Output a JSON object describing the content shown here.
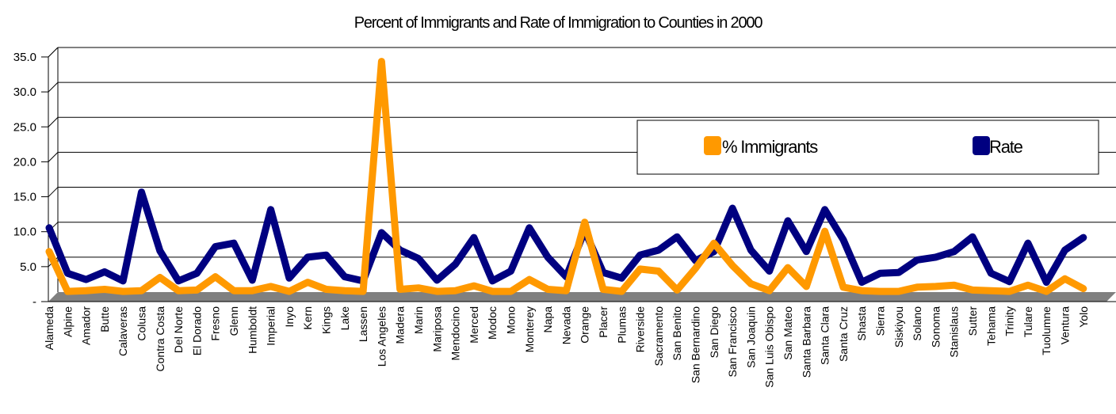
{
  "chart_data": {
    "type": "line",
    "title": "Percent of Immigrants and Rate of Immigration to Counties in 2000",
    "xlabel": "",
    "ylabel": "",
    "ylim": [
      0,
      35
    ],
    "y_ticks": [
      "-",
      "5.0",
      "10.0",
      "15.0",
      "20.0",
      "25.0",
      "30.0",
      "35.0"
    ],
    "grid": true,
    "legend_position": "upper-right",
    "categories": [
      "Alameda",
      "Alpine",
      "Amador",
      "Butte",
      "Calaveras",
      "Colusa",
      "Contra Costa",
      "Del Norte",
      "El Dorado",
      "Fresno",
      "Glenn",
      "Humboldt",
      "Imperial",
      "Inyo",
      "Kern",
      "Kings",
      "Lake",
      "Lassen",
      "Los Angeles",
      "Madera",
      "Marin",
      "Mariposa",
      "Mendocino",
      "Merced",
      "Modoc",
      "Mono",
      "Monterey",
      "Napa",
      "Nevada",
      "Orange",
      "Placer",
      "Plumas",
      "Riverside",
      "Sacramento",
      "San Benito",
      "San Bernardino",
      "San Diego",
      "San Francisco",
      "San Joaquin",
      "San Luis Obispo",
      "San Mateo",
      "Santa Barbara",
      "Santa Clara",
      "Santa Cruz",
      "Shasta",
      "Sierra",
      "Siskiyou",
      "Solano",
      "Sonoma",
      "Stanislaus",
      "Sutter",
      "Tehama",
      "Trinity",
      "Tulare",
      "Tuolumne",
      "Ventura",
      "Yolo"
    ],
    "series": [
      {
        "name": "% Immigrants",
        "color": "#FF9900",
        "values": [
          5.8,
          0.1,
          0.2,
          0.4,
          0.1,
          0.2,
          2.1,
          0.2,
          0.3,
          2.2,
          0.2,
          0.2,
          0.8,
          0.1,
          1.4,
          0.4,
          0.2,
          0.1,
          33.0,
          0.4,
          0.6,
          0.1,
          0.2,
          0.9,
          0.1,
          0.1,
          1.8,
          0.4,
          0.2,
          10.0,
          0.4,
          0.1,
          3.3,
          3.0,
          0.3,
          3.4,
          7.0,
          3.8,
          1.2,
          0.2,
          3.5,
          0.8,
          8.7,
          0.7,
          0.2,
          0.1,
          0.1,
          0.7,
          0.8,
          1.0,
          0.3,
          0.2,
          0.1,
          1.0,
          0.1,
          1.9,
          0.5
        ]
      },
      {
        "name": "Rate",
        "color": "#000080",
        "values": [
          9.2,
          2.7,
          1.8,
          2.9,
          1.6,
          14.3,
          5.9,
          1.6,
          2.7,
          6.5,
          7.0,
          1.7,
          11.8,
          2.0,
          5.0,
          5.3,
          2.2,
          1.6,
          8.5,
          6.0,
          4.8,
          1.7,
          4.0,
          7.8,
          1.6,
          3.0,
          9.2,
          5.0,
          2.2,
          8.8,
          2.8,
          2.0,
          5.3,
          6.0,
          7.9,
          4.5,
          5.8,
          12.0,
          6.0,
          3.0,
          10.2,
          5.8,
          11.8,
          7.5,
          1.4,
          2.7,
          2.8,
          4.6,
          5.0,
          5.8,
          7.9,
          2.7,
          1.5,
          7.0,
          1.4,
          6.0,
          7.8
        ]
      }
    ]
  }
}
